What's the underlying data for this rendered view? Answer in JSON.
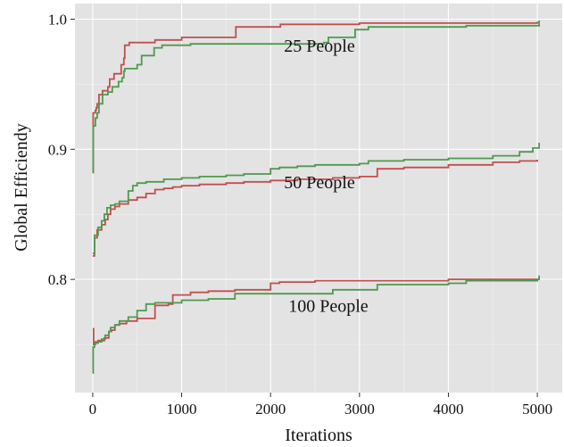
{
  "chart_data": {
    "type": "line",
    "title": "",
    "xlabel": "Iterations",
    "ylabel": "Global Efficiendy",
    "xlim": [
      -200,
      5280
    ],
    "ylim": [
      0.713,
      1.012
    ],
    "x_ticks": [
      0,
      1000,
      2000,
      3000,
      4000,
      5000
    ],
    "x_tick_labels": [
      "0",
      "1000",
      "2000",
      "3000",
      "4000",
      "5000"
    ],
    "y_ticks": [
      0.8,
      0.9,
      1.0
    ],
    "y_tick_labels": [
      "0.8",
      "0.9",
      "1.0"
    ],
    "grid": true,
    "background": "#e3e3e3",
    "grid_color": "#ffffff",
    "colors": {
      "red": "#c0504f",
      "green": "#4e9a4e"
    },
    "annotations": [
      {
        "text": "25 People",
        "x": 2550,
        "y": 0.975
      },
      {
        "text": "50 People",
        "x": 2550,
        "y": 0.87
      },
      {
        "text": "100 People",
        "x": 2650,
        "y": 0.775
      }
    ],
    "series": [
      {
        "group": "25 People",
        "color": "red",
        "points": [
          [
            0,
            0.882
          ],
          [
            5,
            0.928
          ],
          [
            30,
            0.93
          ],
          [
            40,
            0.932
          ],
          [
            50,
            0.935
          ],
          [
            70,
            0.942
          ],
          [
            110,
            0.945
          ],
          [
            170,
            0.948
          ],
          [
            190,
            0.954
          ],
          [
            240,
            0.958
          ],
          [
            290,
            0.958
          ],
          [
            320,
            0.965
          ],
          [
            350,
            0.97
          ],
          [
            360,
            0.98
          ],
          [
            410,
            0.982
          ],
          [
            700,
            0.984
          ],
          [
            1000,
            0.986
          ],
          [
            1600,
            0.986
          ],
          [
            1610,
            0.994
          ],
          [
            2100,
            0.994
          ],
          [
            2110,
            0.996
          ],
          [
            2550,
            0.996
          ],
          [
            3000,
            0.997
          ],
          [
            4000,
            0.997
          ],
          [
            5000,
            0.998
          ]
        ]
      },
      {
        "group": "25 People",
        "color": "green",
        "points": [
          [
            0,
            0.882
          ],
          [
            5,
            0.918
          ],
          [
            30,
            0.924
          ],
          [
            50,
            0.928
          ],
          [
            70,
            0.935
          ],
          [
            110,
            0.942
          ],
          [
            170,
            0.944
          ],
          [
            220,
            0.948
          ],
          [
            290,
            0.952
          ],
          [
            330,
            0.955
          ],
          [
            350,
            0.96
          ],
          [
            360,
            0.962
          ],
          [
            500,
            0.965
          ],
          [
            550,
            0.972
          ],
          [
            690,
            0.978
          ],
          [
            780,
            0.98
          ],
          [
            1100,
            0.981
          ],
          [
            2000,
            0.981
          ],
          [
            2600,
            0.982
          ],
          [
            2650,
            0.986
          ],
          [
            2900,
            0.986
          ],
          [
            2950,
            0.992
          ],
          [
            3100,
            0.994
          ],
          [
            3600,
            0.994
          ],
          [
            4200,
            0.995
          ],
          [
            5000,
            0.995
          ],
          [
            5020,
            0.999
          ]
        ]
      },
      {
        "group": "50 People",
        "color": "red",
        "points": [
          [
            0,
            0.818
          ],
          [
            20,
            0.832
          ],
          [
            50,
            0.838
          ],
          [
            100,
            0.842
          ],
          [
            140,
            0.846
          ],
          [
            170,
            0.85
          ],
          [
            200,
            0.854
          ],
          [
            250,
            0.856
          ],
          [
            300,
            0.858
          ],
          [
            400,
            0.861
          ],
          [
            500,
            0.863
          ],
          [
            600,
            0.866
          ],
          [
            700,
            0.869
          ],
          [
            800,
            0.87
          ],
          [
            900,
            0.871
          ],
          [
            1000,
            0.872
          ],
          [
            1200,
            0.873
          ],
          [
            1500,
            0.874
          ],
          [
            1700,
            0.875
          ],
          [
            2000,
            0.876
          ],
          [
            2300,
            0.877
          ],
          [
            2700,
            0.878
          ],
          [
            3000,
            0.879
          ],
          [
            3200,
            0.885
          ],
          [
            3500,
            0.886
          ],
          [
            4000,
            0.888
          ],
          [
            4500,
            0.89
          ],
          [
            4800,
            0.891
          ],
          [
            5000,
            0.892
          ]
        ]
      },
      {
        "group": "50 People",
        "color": "green",
        "points": [
          [
            0,
            0.82
          ],
          [
            20,
            0.834
          ],
          [
            60,
            0.84
          ],
          [
            100,
            0.845
          ],
          [
            130,
            0.85
          ],
          [
            160,
            0.855
          ],
          [
            200,
            0.857
          ],
          [
            250,
            0.858
          ],
          [
            300,
            0.86
          ],
          [
            400,
            0.868
          ],
          [
            450,
            0.872
          ],
          [
            500,
            0.874
          ],
          [
            600,
            0.875
          ],
          [
            800,
            0.877
          ],
          [
            1000,
            0.878
          ],
          [
            1200,
            0.879
          ],
          [
            1500,
            0.88
          ],
          [
            1700,
            0.881
          ],
          [
            2000,
            0.885
          ],
          [
            2100,
            0.886
          ],
          [
            2300,
            0.887
          ],
          [
            2500,
            0.888
          ],
          [
            3000,
            0.889
          ],
          [
            3100,
            0.891
          ],
          [
            3500,
            0.892
          ],
          [
            4000,
            0.893
          ],
          [
            4500,
            0.895
          ],
          [
            4800,
            0.898
          ],
          [
            4950,
            0.901
          ],
          [
            5020,
            0.905
          ]
        ]
      },
      {
        "group": "100 People",
        "color": "red",
        "points": [
          [
            0,
            0.762
          ],
          [
            10,
            0.75
          ],
          [
            30,
            0.752
          ],
          [
            60,
            0.753
          ],
          [
            100,
            0.753
          ],
          [
            130,
            0.755
          ],
          [
            180,
            0.76
          ],
          [
            210,
            0.761
          ],
          [
            250,
            0.765
          ],
          [
            300,
            0.766
          ],
          [
            380,
            0.768
          ],
          [
            500,
            0.77
          ],
          [
            700,
            0.78
          ],
          [
            850,
            0.781
          ],
          [
            900,
            0.788
          ],
          [
            1100,
            0.79
          ],
          [
            1300,
            0.791
          ],
          [
            1600,
            0.792
          ],
          [
            2000,
            0.797
          ],
          [
            2100,
            0.798
          ],
          [
            2500,
            0.799
          ],
          [
            3000,
            0.799
          ],
          [
            4000,
            0.8
          ],
          [
            5000,
            0.8
          ]
        ]
      },
      {
        "group": "100 People",
        "color": "green",
        "points": [
          [
            0,
            0.728
          ],
          [
            5,
            0.748
          ],
          [
            20,
            0.751
          ],
          [
            60,
            0.752
          ],
          [
            100,
            0.754
          ],
          [
            140,
            0.757
          ],
          [
            180,
            0.76
          ],
          [
            200,
            0.763
          ],
          [
            250,
            0.765
          ],
          [
            300,
            0.768
          ],
          [
            400,
            0.771
          ],
          [
            500,
            0.776
          ],
          [
            600,
            0.781
          ],
          [
            700,
            0.782
          ],
          [
            1000,
            0.784
          ],
          [
            1300,
            0.785
          ],
          [
            1600,
            0.789
          ],
          [
            2000,
            0.789
          ],
          [
            2600,
            0.789
          ],
          [
            2700,
            0.792
          ],
          [
            3000,
            0.792
          ],
          [
            3200,
            0.796
          ],
          [
            4000,
            0.797
          ],
          [
            4200,
            0.799
          ],
          [
            5000,
            0.8
          ],
          [
            5020,
            0.803
          ]
        ]
      }
    ]
  }
}
